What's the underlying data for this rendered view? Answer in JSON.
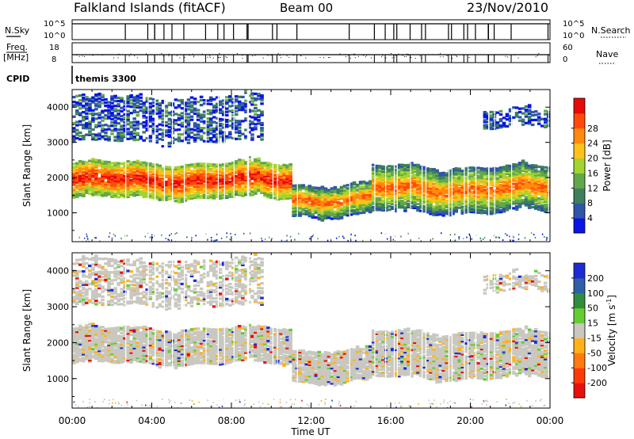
{
  "header": {
    "station": "Falkland Islands (fitACF)",
    "beam": "Beam 00",
    "date": "23/Nov/2010"
  },
  "strips": {
    "nsky_label": "N.Sky",
    "nsky_top": "10^5",
    "nsky_bottom": "10^0",
    "nsearch_label": "N.Search",
    "nsearch_top": "10^5",
    "nsearch_bottom": "10^0",
    "freq_label": "Freq.",
    "freq_unit": "[MHz]",
    "freq_top": "18",
    "freq_bottom": "8",
    "nave_label": "Nave",
    "nave_top": "60",
    "nave_bottom": "0",
    "cpid_label": "CPID",
    "cpid_value": "themis 3300"
  },
  "chart_data": [
    {
      "type": "heatmap",
      "name": "power",
      "ylabel": "Slant Range [km]",
      "xlabel": "Time UT",
      "x_tick_labels": [
        "00:00",
        "04:00",
        "08:00",
        "12:00",
        "16:00",
        "20:00",
        "00:00"
      ],
      "y_tick_labels": [
        "1000",
        "2000",
        "3000",
        "4000"
      ],
      "xlim": [
        0,
        24
      ],
      "ylim": [
        180,
        4500
      ],
      "colorbar": {
        "label": "Power [dB]",
        "ticks": [
          "4",
          "8",
          "12",
          "16",
          "20",
          "24",
          "28"
        ],
        "colors": [
          "#0a14e6",
          "#2e55aa",
          "#3d7f5e",
          "#62a84a",
          "#a3d42f",
          "#ffc21a",
          "#ff8a0d",
          "#ff4a0a",
          "#e80a0a"
        ]
      },
      "bands": [
        {
          "t_start": 0.0,
          "t_end": 11.0,
          "range_min": 1400,
          "range_max": 2400,
          "level": "high"
        },
        {
          "t_start": 11.0,
          "t_end": 15.0,
          "range_min": 900,
          "range_max": 1800,
          "level": "medium"
        },
        {
          "t_start": 15.0,
          "t_end": 24.0,
          "range_min": 1000,
          "range_max": 2300,
          "level": "medium"
        },
        {
          "t_start": 0.0,
          "t_end": 9.5,
          "range_min": 3000,
          "range_max": 4300,
          "level": "low"
        },
        {
          "t_start": 20.5,
          "t_end": 24.0,
          "range_min": 3400,
          "range_max": 3900,
          "level": "low"
        }
      ]
    },
    {
      "type": "heatmap",
      "name": "velocity",
      "ylabel": "Slant Range [km]",
      "xlabel": "Time UT",
      "x_tick_labels": [
        "00:00",
        "04:00",
        "08:00",
        "12:00",
        "16:00",
        "20:00",
        "00:00"
      ],
      "y_tick_labels": [
        "1000",
        "2000",
        "3000",
        "4000"
      ],
      "xlim": [
        0,
        24
      ],
      "ylim": [
        180,
        4500
      ],
      "colorbar": {
        "label": "Velocity [m s^-1]",
        "ticks": [
          "200",
          "100",
          "50",
          "15",
          "-15",
          "-50",
          "-100",
          "-200"
        ],
        "colors": [
          "#1e2ad2",
          "#2f5fa8",
          "#2e8d3e",
          "#66cc33",
          "#c8c8c0",
          "#ffb21a",
          "#ff7a10",
          "#ff3a0a",
          "#e8100a"
        ]
      },
      "dominant_value": "-15 to 15 (ground scatter grey)"
    }
  ]
}
